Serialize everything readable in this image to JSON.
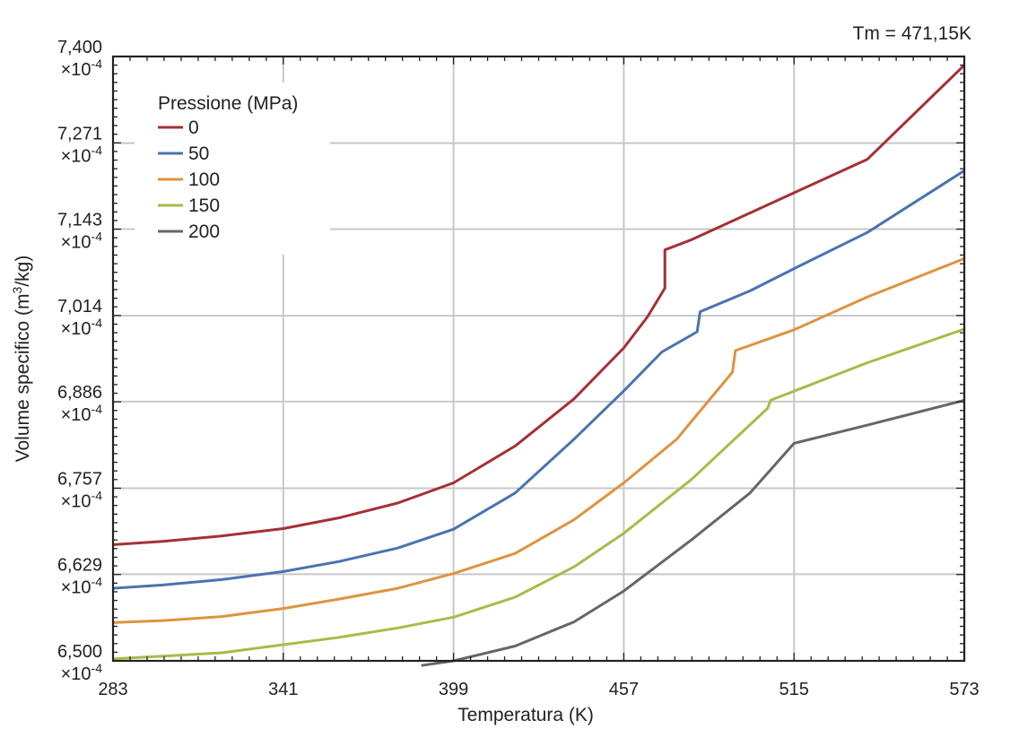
{
  "chart_data": {
    "type": "line",
    "title": "",
    "annotation": "Tm = 471,15K",
    "xlabel": "Temperatura (K)",
    "ylabel_main": "Volume specifico (m",
    "ylabel_sup": "3",
    "ylabel_end": "/kg)",
    "xlim": [
      283,
      573
    ],
    "ylim": [
      6.5,
      7.4
    ],
    "x_ticks": [
      283,
      341,
      399,
      457,
      515,
      573
    ],
    "x_tick_labels": [
      "283",
      "341",
      "399",
      "457",
      "515",
      "573"
    ],
    "y_ticks": [
      6.5,
      6.629,
      6.757,
      6.886,
      7.014,
      7.143,
      7.271,
      7.4
    ],
    "y_tick_labels": [
      "6,500",
      "6,629",
      "6,757",
      "6,886",
      "7,014",
      "7,143",
      "7,271",
      "7,400"
    ],
    "y_tick_multiplier": "×10",
    "y_tick_exponent": "-4",
    "grid": true,
    "legend_position": "top-left",
    "legend_title": "Pressione (MPa)",
    "series": [
      {
        "name": "0",
        "color": "#a53035",
        "x": [
          283,
          300,
          320,
          341,
          360,
          380,
          399,
          420,
          440,
          457,
          465,
          471,
          471,
          480,
          500,
          515,
          540,
          573
        ],
        "y": [
          6.673,
          6.678,
          6.686,
          6.697,
          6.713,
          6.735,
          6.765,
          6.82,
          6.89,
          6.966,
          7.012,
          7.055,
          7.112,
          7.127,
          7.167,
          7.197,
          7.247,
          7.387
        ]
      },
      {
        "name": "50",
        "color": "#4a73b0",
        "x": [
          283,
          300,
          320,
          341,
          360,
          380,
          399,
          420,
          440,
          457,
          470,
          482,
          483,
          500,
          515,
          540,
          573
        ],
        "y": [
          6.608,
          6.613,
          6.621,
          6.633,
          6.648,
          6.668,
          6.696,
          6.75,
          6.83,
          6.902,
          6.96,
          6.99,
          7.02,
          7.051,
          7.084,
          7.138,
          7.23
        ]
      },
      {
        "name": "100",
        "color": "#dd9440",
        "x": [
          283,
          300,
          320,
          341,
          360,
          380,
          399,
          420,
          440,
          457,
          475,
          494,
          495,
          515,
          540,
          573
        ],
        "y": [
          6.557,
          6.56,
          6.566,
          6.578,
          6.592,
          6.608,
          6.63,
          6.66,
          6.71,
          6.765,
          6.83,
          6.93,
          6.962,
          6.993,
          7.042,
          7.099
        ]
      },
      {
        "name": "150",
        "color": "#a9bb48",
        "x": [
          283,
          300,
          320,
          341,
          360,
          380,
          399,
          420,
          440,
          457,
          480,
          506,
          507,
          540,
          573
        ],
        "y": [
          6.503,
          6.507,
          6.512,
          6.524,
          6.535,
          6.549,
          6.565,
          6.595,
          6.64,
          6.69,
          6.77,
          6.876,
          6.888,
          6.944,
          6.994
        ]
      },
      {
        "name": "200",
        "color": "#666666",
        "x": [
          388,
          399,
          420,
          440,
          457,
          480,
          500,
          515,
          540,
          573
        ],
        "y": [
          6.493,
          6.5,
          6.522,
          6.558,
          6.604,
          6.68,
          6.75,
          6.824,
          6.851,
          6.888
        ]
      }
    ]
  }
}
